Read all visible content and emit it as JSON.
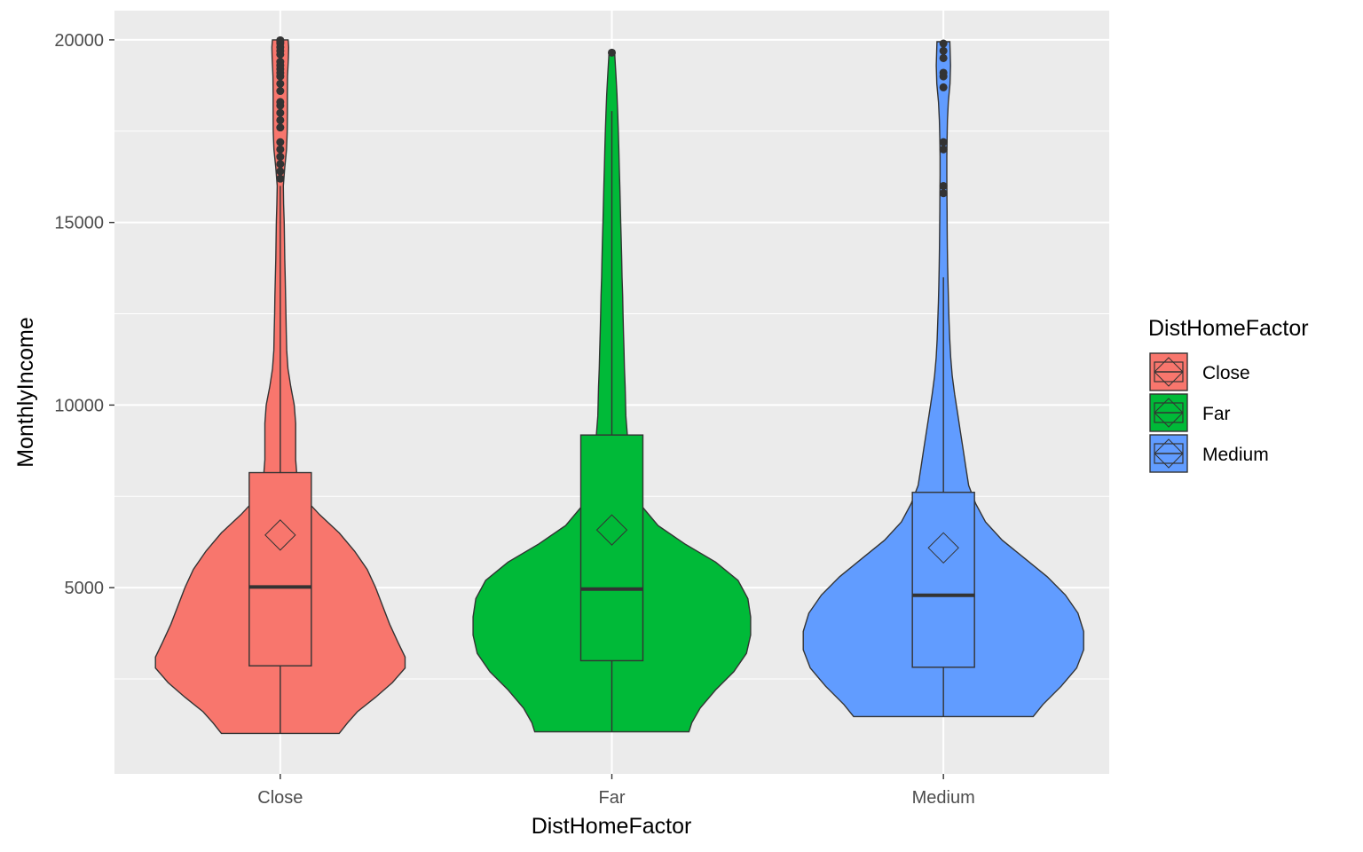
{
  "chart_data": {
    "type": "violin",
    "xlabel": "DistHomeFactor",
    "ylabel": "MonthlyIncome",
    "categories": [
      "Close",
      "Far",
      "Medium"
    ],
    "colors": [
      "#F8766D",
      "#00BA38",
      "#619CFF"
    ],
    "ylim": [
      -100,
      20800
    ],
    "yticks": [
      5000,
      10000,
      15000,
      20000
    ],
    "ytick_labels": [
      "5000",
      "10000",
      "15000",
      "20000"
    ],
    "minor_yticks": [
      2500,
      7500,
      12500,
      17500
    ],
    "grid": true,
    "series": [
      {
        "category": "Close",
        "min": 1009,
        "q1": 2860,
        "median": 5020,
        "q3": 8150,
        "max": 16000,
        "mean": 6440,
        "outliers": [
          16200,
          16400,
          16600,
          16800,
          17000,
          17200,
          17600,
          17800,
          18000,
          18200,
          18300,
          18600,
          18800,
          19000,
          19100,
          19200,
          19300,
          19400,
          19600,
          19700,
          19800,
          19900,
          19950,
          19990
        ],
        "density": [
          [
            1009,
            0.42
          ],
          [
            1300,
            0.48
          ],
          [
            1600,
            0.55
          ],
          [
            2000,
            0.68
          ],
          [
            2400,
            0.8
          ],
          [
            2800,
            0.89
          ],
          [
            3100,
            0.89
          ],
          [
            3500,
            0.84
          ],
          [
            4000,
            0.78
          ],
          [
            4500,
            0.73
          ],
          [
            5000,
            0.68
          ],
          [
            5500,
            0.62
          ],
          [
            6000,
            0.53
          ],
          [
            6500,
            0.42
          ],
          [
            7000,
            0.28
          ],
          [
            7500,
            0.16
          ],
          [
            8000,
            0.12
          ],
          [
            8500,
            0.11
          ],
          [
            9000,
            0.11
          ],
          [
            9500,
            0.11
          ],
          [
            10000,
            0.1
          ],
          [
            10500,
            0.075
          ],
          [
            11000,
            0.055
          ],
          [
            11500,
            0.046
          ],
          [
            12000,
            0.043
          ],
          [
            12500,
            0.04
          ],
          [
            13000,
            0.038
          ],
          [
            13500,
            0.035
          ],
          [
            14000,
            0.032
          ],
          [
            14500,
            0.03
          ],
          [
            15000,
            0.028
          ],
          [
            15500,
            0.024
          ],
          [
            16000,
            0.022
          ],
          [
            16500,
            0.032
          ],
          [
            17000,
            0.045
          ],
          [
            17500,
            0.05
          ],
          [
            18000,
            0.051
          ],
          [
            18500,
            0.051
          ],
          [
            19000,
            0.052
          ],
          [
            19500,
            0.058
          ],
          [
            19800,
            0.06
          ],
          [
            20000,
            0.056
          ]
        ]
      },
      {
        "category": "Far",
        "min": 1051,
        "q1": 3000,
        "median": 4960,
        "q3": 9180,
        "max": 18050,
        "mean": 6580,
        "outliers": [
          19650
        ],
        "density": [
          [
            1051,
            0.55
          ],
          [
            1300,
            0.57
          ],
          [
            1700,
            0.63
          ],
          [
            2200,
            0.74
          ],
          [
            2700,
            0.87
          ],
          [
            3200,
            0.96
          ],
          [
            3700,
            0.99
          ],
          [
            4200,
            0.99
          ],
          [
            4700,
            0.97
          ],
          [
            5200,
            0.9
          ],
          [
            5700,
            0.74
          ],
          [
            6200,
            0.52
          ],
          [
            6700,
            0.33
          ],
          [
            7200,
            0.22
          ],
          [
            7700,
            0.16
          ],
          [
            8200,
            0.14
          ],
          [
            8700,
            0.12
          ],
          [
            9200,
            0.11
          ],
          [
            9700,
            0.1
          ],
          [
            10500,
            0.095
          ],
          [
            11000,
            0.09
          ],
          [
            11500,
            0.087
          ],
          [
            12000,
            0.083
          ],
          [
            12500,
            0.08
          ],
          [
            13000,
            0.077
          ],
          [
            13500,
            0.073
          ],
          [
            14000,
            0.07
          ],
          [
            14500,
            0.067
          ],
          [
            15000,
            0.063
          ],
          [
            15500,
            0.06
          ],
          [
            16000,
            0.057
          ],
          [
            16500,
            0.053
          ],
          [
            17000,
            0.05
          ],
          [
            17500,
            0.046
          ],
          [
            18000,
            0.042
          ],
          [
            18500,
            0.037
          ],
          [
            19000,
            0.03
          ],
          [
            19500,
            0.022
          ],
          [
            19650,
            0.02
          ]
        ]
      },
      {
        "category": "Medium",
        "min": 1470,
        "q1": 2820,
        "median": 4790,
        "q3": 7610,
        "max": 13500,
        "mean": 6090,
        "outliers": [
          15800,
          16000,
          17000,
          17200,
          18700,
          19000,
          19100,
          19500,
          19700,
          19900
        ],
        "density": [
          [
            1470,
            0.64
          ],
          [
            1800,
            0.71
          ],
          [
            2300,
            0.84
          ],
          [
            2800,
            0.95
          ],
          [
            3300,
            1.0
          ],
          [
            3800,
            1.0
          ],
          [
            4300,
            0.96
          ],
          [
            4800,
            0.87
          ],
          [
            5300,
            0.74
          ],
          [
            5800,
            0.58
          ],
          [
            6300,
            0.42
          ],
          [
            6800,
            0.3
          ],
          [
            7300,
            0.23
          ],
          [
            7800,
            0.18
          ],
          [
            8300,
            0.16
          ],
          [
            8800,
            0.14
          ],
          [
            9300,
            0.12
          ],
          [
            9800,
            0.1
          ],
          [
            10300,
            0.08
          ],
          [
            10800,
            0.063
          ],
          [
            11300,
            0.052
          ],
          [
            11800,
            0.045
          ],
          [
            12300,
            0.04
          ],
          [
            12800,
            0.036
          ],
          [
            13300,
            0.033
          ],
          [
            13800,
            0.03
          ],
          [
            14300,
            0.028
          ],
          [
            14800,
            0.027
          ],
          [
            15300,
            0.026
          ],
          [
            15800,
            0.025
          ],
          [
            16300,
            0.024
          ],
          [
            16800,
            0.024
          ],
          [
            17300,
            0.026
          ],
          [
            17800,
            0.029
          ],
          [
            18300,
            0.035
          ],
          [
            18800,
            0.047
          ],
          [
            19300,
            0.051
          ],
          [
            19800,
            0.047
          ],
          [
            19950,
            0.046
          ]
        ]
      }
    ],
    "legend": {
      "title": "DistHomeFactor",
      "entries": [
        "Close",
        "Far",
        "Medium"
      ],
      "position": "right"
    }
  }
}
